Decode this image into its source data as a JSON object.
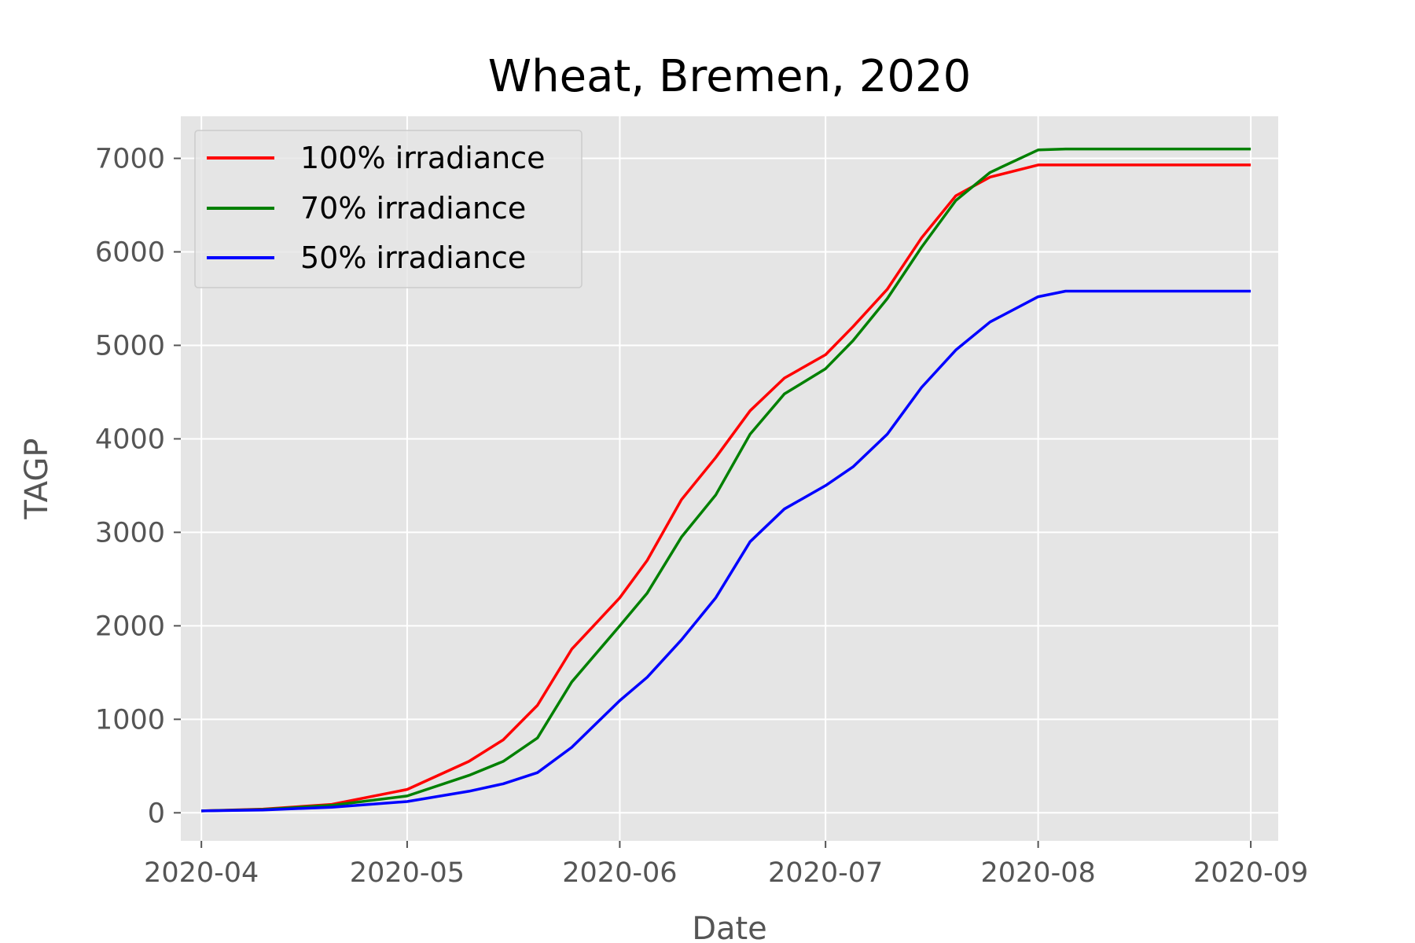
{
  "chart_data": {
    "type": "line",
    "title": "Wheat, Bremen, 2020",
    "xlabel": "Date",
    "ylabel": "TAGP",
    "x_ticks": [
      "2020-04",
      "2020-05",
      "2020-06",
      "2020-07",
      "2020-08",
      "2020-09"
    ],
    "y_ticks": [
      0,
      1000,
      2000,
      3000,
      4000,
      5000,
      6000,
      7000
    ],
    "xlim": [
      "2020-03-29",
      "2020-09-05"
    ],
    "ylim": [
      -300,
      7450
    ],
    "grid": true,
    "legend_position": "top-left",
    "x": [
      "2020-04-01",
      "2020-04-10",
      "2020-04-20",
      "2020-05-01",
      "2020-05-10",
      "2020-05-15",
      "2020-05-20",
      "2020-05-25",
      "2020-06-01",
      "2020-06-05",
      "2020-06-10",
      "2020-06-15",
      "2020-06-20",
      "2020-06-25",
      "2020-07-01",
      "2020-07-05",
      "2020-07-10",
      "2020-07-15",
      "2020-07-20",
      "2020-07-25",
      "2020-08-01",
      "2020-08-05",
      "2020-08-15",
      "2020-09-01"
    ],
    "series": [
      {
        "name": "100% irradiance",
        "color": "#ff0000",
        "values": [
          20,
          40,
          90,
          250,
          550,
          780,
          1150,
          1750,
          2300,
          2700,
          3350,
          3800,
          4300,
          4650,
          4900,
          5200,
          5600,
          6150,
          6600,
          6800,
          6930,
          6930,
          6930,
          6930
        ]
      },
      {
        "name": "70% irradiance",
        "color": "#008000",
        "values": [
          20,
          35,
          80,
          180,
          400,
          550,
          800,
          1400,
          2000,
          2350,
          2950,
          3400,
          4050,
          4480,
          4750,
          5050,
          5500,
          6050,
          6550,
          6850,
          7090,
          7100,
          7100,
          7100
        ]
      },
      {
        "name": "50% irradiance",
        "color": "#0000ff",
        "values": [
          20,
          30,
          60,
          120,
          230,
          310,
          430,
          700,
          1200,
          1450,
          1850,
          2300,
          2900,
          3250,
          3500,
          3700,
          4050,
          4550,
          4950,
          5250,
          5520,
          5580,
          5580,
          5580
        ]
      }
    ]
  }
}
